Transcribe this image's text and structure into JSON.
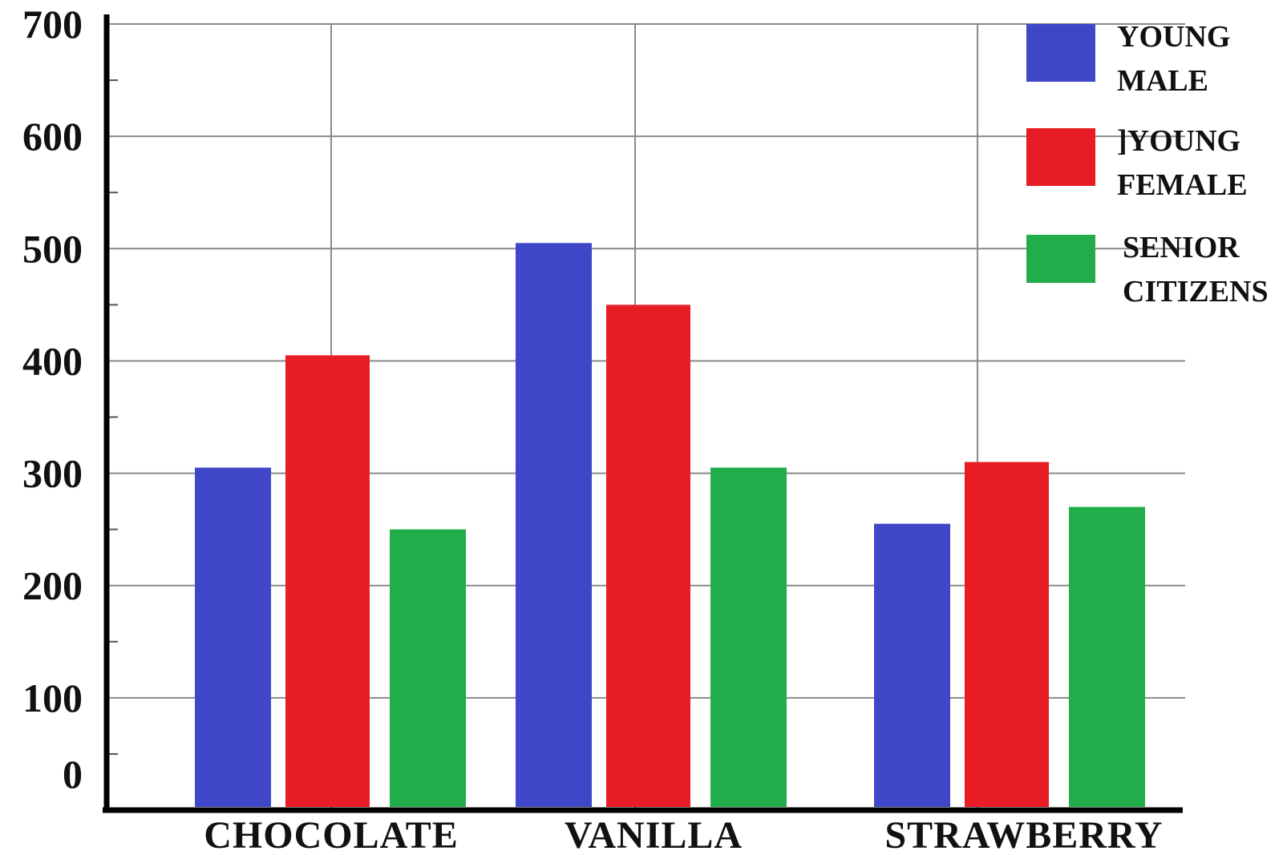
{
  "chart_data": {
    "type": "bar",
    "categories": [
      "CHOCOLATE",
      "VANILLA",
      "STRAWBERRY"
    ],
    "series": [
      {
        "name": "YOUNG MALE",
        "legend_lines": [
          "YOUNG",
          "MALE"
        ],
        "color": "#3f47c8",
        "values": [
          305,
          505,
          255
        ]
      },
      {
        "name": "YOUNG FEMALE",
        "legend_lines": [
          "]YOUNG",
          "FEMALE"
        ],
        "color": "#e81c25",
        "values": [
          405,
          450,
          310
        ]
      },
      {
        "name": "SENIOR CITIZENS",
        "legend_lines": [
          "SENIOR",
          "CITIZENS"
        ],
        "color": "#22ad4b",
        "values": [
          250,
          305,
          270
        ]
      }
    ],
    "yticks": [
      "0",
      "100",
      "200",
      "300",
      "400",
      "500",
      "600",
      "700"
    ],
    "ylim": [
      0,
      700
    ],
    "grid": true,
    "legend_position": "top-right",
    "title": "",
    "xlabel": "",
    "ylabel": ""
  }
}
